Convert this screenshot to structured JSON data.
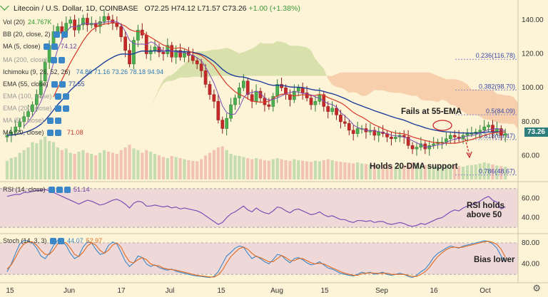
{
  "header": {
    "symbol_title": "Litecoin / U.S. Dollar",
    "interval": "1D",
    "exchange": "COINBASE",
    "open": "O72.25",
    "high": "H74.12",
    "low": "L71.57",
    "close": "C73.26",
    "change": "+1.00 (+1.38%)"
  },
  "indicators": [
    {
      "label": "Vol (20)",
      "value": "24.767K",
      "value_color": "#2a9a2a"
    },
    {
      "label": "BB (20, close, 2)",
      "value": "",
      "value_color": "#333"
    },
    {
      "label": "MA (5, close)",
      "value": "74.12",
      "value_color": "#6a3fa0"
    },
    {
      "label": "MA (200, close)",
      "value": "",
      "value_color": "#333"
    },
    {
      "label": "Ichimoku (9, 26, 52, 26)",
      "value": "74.86  71.16  73.26  78.18  94.94",
      "value_color": "#2a7ab8"
    },
    {
      "label": "EMA (55, close)",
      "value": "77.55",
      "value_color": "#2a4a9a"
    },
    {
      "label": "EMA (100, close)",
      "value": "",
      "value_color": "#333"
    },
    {
      "label": "EMA (200, close)",
      "value": "",
      "value_color": "#333"
    },
    {
      "label": "MA (50, close)",
      "value": "",
      "value_color": "#333"
    },
    {
      "label": "MA (20, close)",
      "value": "71.08",
      "value_color": "#c0392b"
    }
  ],
  "rsi_legend": {
    "label": "RSI (14, close)",
    "value": "51.14"
  },
  "stoch_legend": {
    "label": "Stoch (14, 3, 3)",
    "k": "44.07",
    "d": "52.97"
  },
  "current_price_tag": "73.26",
  "settings_icon": "gear-icon",
  "chart_data": {
    "type": "candlestick",
    "title": "Litecoin / U.S. Dollar 1D COINBASE",
    "x_ticks": [
      "15",
      "Jun",
      "17",
      "Jul",
      "15",
      "Aug",
      "15",
      "Sep",
      "16",
      "Oct"
    ],
    "price_axis": {
      "ticks": [
        60.0,
        80.0,
        100.0,
        120.0,
        140.0
      ],
      "labels": [
        "60.00",
        "80.00",
        "100.00",
        "120.00",
        "140.00"
      ],
      "range": [
        46,
        150
      ]
    },
    "closes": [
      72,
      74,
      77,
      80,
      83,
      86,
      90,
      96,
      104,
      115,
      125,
      133,
      136,
      132,
      138,
      140,
      134,
      137,
      141,
      137,
      138,
      136,
      139,
      142,
      140,
      138,
      136,
      130,
      122,
      114,
      128,
      134,
      131,
      120,
      122,
      124,
      121,
      120,
      125,
      118,
      122,
      118,
      121,
      119,
      116,
      114,
      110,
      102,
      96,
      92,
      81,
      76,
      82,
      90,
      94,
      100,
      104,
      96,
      92,
      98,
      94,
      90,
      89,
      95,
      102,
      100,
      96,
      93,
      98,
      100,
      97,
      94,
      90,
      92,
      96,
      89,
      86,
      88,
      84,
      80,
      79,
      75,
      73,
      76,
      76,
      74,
      75,
      72,
      74,
      73,
      71,
      70,
      71,
      72,
      71,
      66,
      64,
      65,
      67,
      64,
      66,
      67,
      68,
      68,
      70,
      72,
      71,
      70,
      72,
      73,
      73,
      74,
      75,
      77,
      78,
      74,
      76,
      72,
      73
    ],
    "volume": [
      35,
      40,
      42,
      50,
      55,
      60,
      70,
      68,
      75,
      80,
      72,
      70,
      60,
      55,
      58,
      50,
      48,
      52,
      55,
      50,
      48,
      45,
      50,
      55,
      52,
      50,
      48,
      55,
      60,
      65,
      58,
      55,
      50,
      55,
      52,
      48,
      45,
      42,
      40,
      44,
      42,
      40,
      38,
      36,
      35,
      34,
      38,
      45,
      50,
      55,
      60,
      62,
      55,
      48,
      45,
      44,
      42,
      40,
      38,
      40,
      38,
      36,
      35,
      38,
      40,
      38,
      36,
      35,
      38,
      36,
      35,
      34,
      33,
      35,
      34,
      36,
      38,
      36,
      34,
      33,
      32,
      31,
      30,
      32,
      30,
      29,
      28,
      27,
      26,
      28,
      27,
      26,
      25,
      26,
      27,
      30,
      32,
      30,
      28,
      27,
      26,
      25,
      24,
      25,
      26,
      27,
      26,
      25,
      24,
      26,
      27,
      28,
      30,
      32,
      30,
      28,
      26,
      25,
      24
    ],
    "annotations": [
      "Fails at 55-EMA",
      "Holds 20-DMA support"
    ],
    "fib_levels": [
      {
        "label": "0.236(116.78)",
        "value": 116.78
      },
      {
        "label": "0.382(98.70)",
        "value": 98.7
      },
      {
        "label": "0.5(84.09)",
        "value": 84.09
      },
      {
        "label": "0.618(69.47)",
        "value": 69.47
      },
      {
        "label": "0.786(48.67)",
        "value": 48.67
      }
    ],
    "rsi": {
      "label": "RSI (14, close)",
      "ticks": [
        40.0,
        60.0
      ],
      "tick_labels": [
        "40.00",
        "60.00"
      ],
      "range": [
        25,
        75
      ],
      "values": [
        62,
        63,
        64,
        64,
        66,
        66,
        67,
        68,
        68,
        69,
        68,
        66,
        64,
        62,
        60,
        58,
        56,
        54,
        56,
        58,
        57,
        55,
        53,
        54,
        56,
        58,
        59,
        57,
        54,
        50,
        55,
        57,
        56,
        52,
        52,
        53,
        52,
        51,
        52,
        50,
        51,
        49,
        50,
        49,
        48,
        47,
        45,
        42,
        39,
        36,
        33,
        35,
        40,
        44,
        46,
        49,
        52,
        48,
        46,
        50,
        47,
        45,
        44,
        47,
        51,
        50,
        47,
        45,
        48,
        49,
        47,
        45,
        43,
        44,
        46,
        43,
        41,
        42,
        40,
        38,
        38,
        36,
        35,
        37,
        37,
        36,
        37,
        35,
        36,
        36,
        34,
        33,
        34,
        35,
        34,
        32,
        31,
        32,
        34,
        33,
        35,
        37,
        39,
        40,
        43,
        46,
        48,
        47,
        50,
        52,
        53,
        55,
        57,
        60,
        62,
        58,
        56,
        49,
        51
      ],
      "annotation": "RSI holds above 50"
    },
    "stoch": {
      "label": "Stoch (14, 3, 3)",
      "ticks": [
        40.0,
        80.0
      ],
      "tick_labels": [
        "40.00",
        "80.00"
      ],
      "range": [
        8,
        95
      ],
      "k": [
        25,
        40,
        60,
        78,
        85,
        84,
        80,
        70,
        55,
        50,
        60,
        75,
        85,
        83,
        75,
        60,
        50,
        55,
        72,
        82,
        80,
        68,
        58,
        60,
        75,
        82,
        78,
        62,
        45,
        35,
        42,
        55,
        52,
        40,
        35,
        38,
        33,
        30,
        28,
        30,
        26,
        24,
        22,
        20,
        18,
        17,
        16,
        15,
        14,
        16,
        25,
        40,
        55,
        62,
        70,
        74,
        72,
        60,
        50,
        55,
        50,
        44,
        40,
        48,
        58,
        56,
        48,
        42,
        50,
        52,
        48,
        42,
        38,
        40,
        44,
        38,
        32,
        30,
        26,
        22,
        20,
        18,
        17,
        20,
        24,
        22,
        24,
        20,
        22,
        24,
        20,
        18,
        20,
        22,
        20,
        16,
        14,
        18,
        25,
        30,
        40,
        52,
        60,
        65,
        70,
        74,
        72,
        70,
        74,
        76,
        78,
        80,
        82,
        84,
        83,
        78,
        70,
        55,
        44
      ],
      "d": [
        30,
        38,
        52,
        68,
        78,
        82,
        82,
        76,
        66,
        58,
        58,
        66,
        78,
        82,
        80,
        70,
        58,
        54,
        62,
        74,
        80,
        76,
        66,
        60,
        66,
        76,
        80,
        72,
        56,
        44,
        42,
        48,
        52,
        48,
        40,
        37,
        36,
        32,
        30,
        29,
        28,
        26,
        24,
        22,
        20,
        18,
        17,
        16,
        15,
        15,
        19,
        28,
        42,
        54,
        62,
        69,
        72,
        68,
        60,
        54,
        52,
        48,
        44,
        44,
        50,
        56,
        52,
        46,
        46,
        50,
        50,
        46,
        42,
        40,
        41,
        40,
        36,
        32,
        29,
        25,
        22,
        20,
        18,
        18,
        21,
        22,
        23,
        22,
        22,
        22,
        22,
        20,
        20,
        20,
        20,
        18,
        16,
        16,
        20,
        25,
        33,
        44,
        54,
        61,
        67,
        71,
        72,
        71,
        72,
        74,
        76,
        78,
        80,
        82,
        83,
        81,
        77,
        68,
        53
      ],
      "annotation": "Bias lower"
    }
  }
}
